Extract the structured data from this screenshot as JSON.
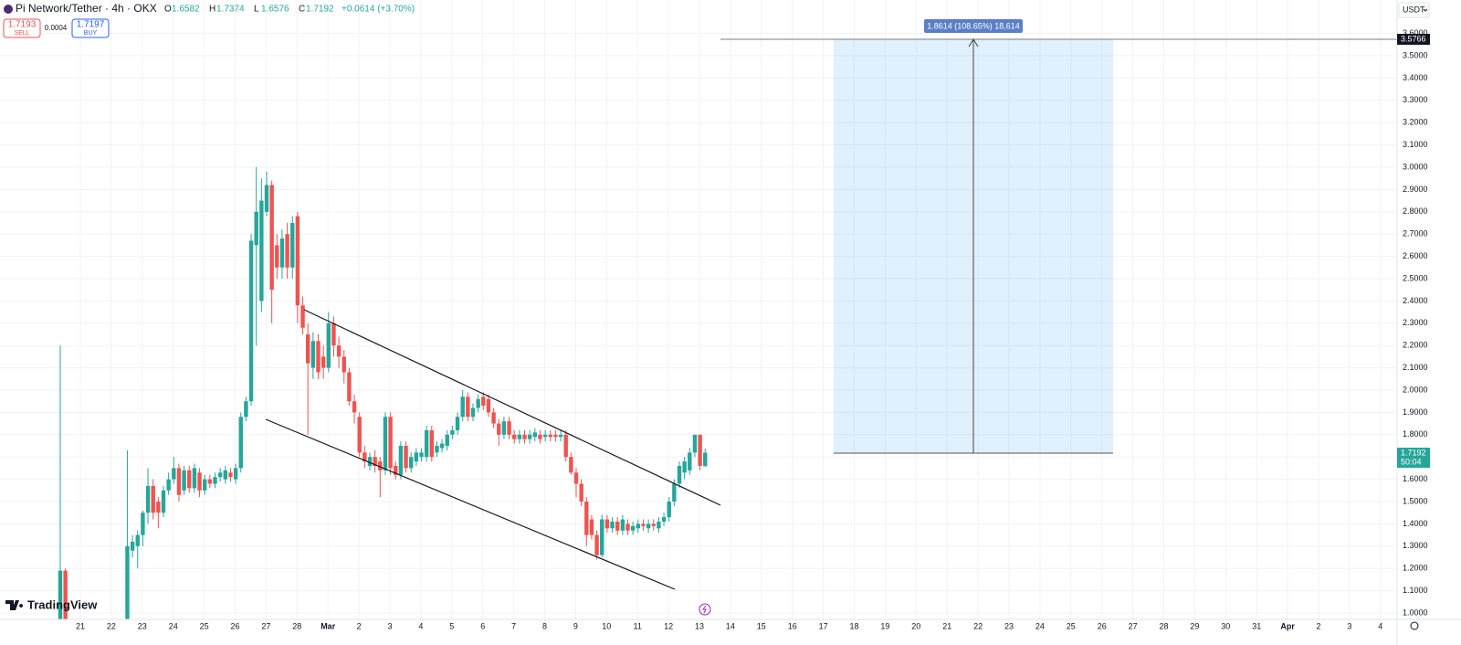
{
  "chart_data": {
    "type": "candlestick",
    "title": "Pi Network/Tether · 4h · OKX",
    "ohlc": [
      {
        "label": "O",
        "value": 1.6582
      },
      {
        "label": "H",
        "value": 1.7374
      },
      {
        "label": "L",
        "value": 1.6576
      },
      {
        "label": "C",
        "value": 1.7192
      }
    ],
    "change": "+0.0614 (+3.70%)",
    "sell": {
      "price": 1.7193,
      "label": "SELL"
    },
    "spread": 0.0004,
    "buy": {
      "price": 1.7197,
      "label": "BUY"
    },
    "currency": "USDT",
    "logo": "TradingView",
    "measure_label": "1.8614 (108.65%) 18,614",
    "target_price": 3.5766,
    "last_price": 1.7192,
    "countdown": "50:04",
    "up_color": "#26a69a",
    "down_color": "#ef5350",
    "grid": true,
    "ylim": [
      0.96,
      3.66
    ],
    "yticks": [
      {
        "value": 1.0,
        "label": "1.0000"
      },
      {
        "value": 1.1,
        "label": "1.1000"
      },
      {
        "value": 1.2,
        "label": "1.2000"
      },
      {
        "value": 1.3,
        "label": "1.3000"
      },
      {
        "value": 1.4,
        "label": "1.4000"
      },
      {
        "value": 1.5,
        "label": "1.5000"
      },
      {
        "value": 1.6,
        "label": "1.6000"
      },
      {
        "value": 1.7,
        "label": "1.7000"
      },
      {
        "value": 1.8,
        "label": "1.8000"
      },
      {
        "value": 1.9,
        "label": "1.9000"
      },
      {
        "value": 2.0,
        "label": "2.0000"
      },
      {
        "value": 2.1,
        "label": "2.1000"
      },
      {
        "value": 2.2,
        "label": "2.2000"
      },
      {
        "value": 2.3,
        "label": "2.3000"
      },
      {
        "value": 2.4,
        "label": "2.4000"
      },
      {
        "value": 2.5,
        "label": "2.5000"
      },
      {
        "value": 2.6,
        "label": "2.6000"
      },
      {
        "value": 2.7,
        "label": "2.7000"
      },
      {
        "value": 2.8,
        "label": "2.8000"
      },
      {
        "value": 2.9,
        "label": "2.9000"
      },
      {
        "value": 3.0,
        "label": "3.0000"
      },
      {
        "value": 3.1,
        "label": "3.1000"
      },
      {
        "value": 3.2,
        "label": "3.2000"
      },
      {
        "value": 3.3,
        "label": "3.3000"
      },
      {
        "value": 3.4,
        "label": "3.4000"
      },
      {
        "value": 3.5,
        "label": "3.5000"
      },
      {
        "value": 3.6,
        "label": "3.6000"
      }
    ],
    "x_labels": [
      "21",
      "22",
      "23",
      "24",
      "25",
      "26",
      "27",
      "28",
      "Mar",
      "2",
      "3",
      "4",
      "5",
      "6",
      "7",
      "8",
      "9",
      "10",
      "11",
      "12",
      "13",
      "14",
      "15",
      "16",
      "17",
      "18",
      "19",
      "20",
      "21",
      "22",
      "23",
      "24",
      "25",
      "26",
      "27",
      "28",
      "29",
      "30",
      "31",
      "Apr",
      "2",
      "3",
      "4"
    ],
    "candles": [
      [
        0.95,
        2.2,
        0.9,
        1.19
      ],
      [
        1.19,
        1.2,
        0.9,
        0.95
      ],
      null,
      null,
      null,
      null,
      null,
      null,
      null,
      null,
      null,
      null,
      null,
      [
        0.95,
        1.73,
        0.95,
        1.3
      ],
      [
        1.28,
        1.35,
        1.25,
        1.32
      ],
      [
        1.3,
        1.37,
        1.2,
        1.35
      ],
      [
        1.35,
        1.46,
        1.3,
        1.45
      ],
      [
        1.45,
        1.65,
        1.4,
        1.57
      ],
      [
        1.57,
        1.6,
        1.42,
        1.45
      ],
      [
        1.5,
        1.52,
        1.38,
        1.45
      ],
      [
        1.45,
        1.57,
        1.43,
        1.55
      ],
      [
        1.55,
        1.63,
        1.53,
        1.6
      ],
      [
        1.6,
        1.7,
        1.58,
        1.65
      ],
      [
        1.65,
        1.67,
        1.5,
        1.53
      ],
      [
        1.55,
        1.66,
        1.53,
        1.64
      ],
      [
        1.64,
        1.66,
        1.54,
        1.56
      ],
      [
        1.56,
        1.67,
        1.54,
        1.65
      ],
      [
        1.63,
        1.65,
        1.52,
        1.55
      ],
      [
        1.55,
        1.62,
        1.53,
        1.6
      ],
      [
        1.6,
        1.62,
        1.56,
        1.58
      ],
      [
        1.58,
        1.63,
        1.56,
        1.61
      ],
      [
        1.61,
        1.65,
        1.59,
        1.63
      ],
      [
        1.6,
        1.66,
        1.58,
        1.64
      ],
      [
        1.63,
        1.65,
        1.59,
        1.61
      ],
      [
        1.6,
        1.67,
        1.58,
        1.65
      ],
      [
        1.65,
        1.9,
        1.63,
        1.88
      ],
      [
        1.88,
        1.97,
        1.86,
        1.95
      ],
      [
        1.95,
        2.7,
        1.93,
        2.67
      ],
      [
        2.65,
        3.0,
        2.2,
        2.8
      ],
      [
        2.4,
        2.95,
        2.35,
        2.85
      ],
      [
        2.8,
        2.98,
        2.78,
        2.92
      ],
      [
        2.92,
        2.94,
        2.3,
        2.45
      ],
      [
        2.65,
        2.7,
        2.5,
        2.55
      ],
      [
        2.55,
        2.72,
        2.5,
        2.68
      ],
      [
        2.7,
        2.75,
        2.5,
        2.55
      ],
      [
        2.55,
        2.78,
        2.5,
        2.75
      ],
      [
        2.78,
        2.8,
        2.3,
        2.38
      ],
      [
        2.38,
        2.42,
        2.25,
        2.28
      ],
      [
        2.25,
        2.3,
        1.8,
        2.12
      ],
      [
        2.1,
        2.26,
        2.05,
        2.22
      ],
      [
        2.22,
        2.25,
        2.05,
        2.08
      ],
      [
        2.15,
        2.2,
        2.05,
        2.1
      ],
      [
        2.1,
        2.35,
        2.08,
        2.3
      ],
      [
        2.3,
        2.33,
        2.15,
        2.2
      ],
      [
        2.2,
        2.24,
        2.1,
        2.15
      ],
      [
        2.15,
        2.18,
        2.03,
        2.08
      ],
      [
        2.08,
        2.1,
        1.93,
        1.95
      ],
      [
        1.95,
        1.98,
        1.85,
        1.9
      ],
      [
        1.88,
        1.9,
        1.7,
        1.72
      ],
      [
        1.72,
        1.75,
        1.65,
        1.68
      ],
      [
        1.66,
        1.72,
        1.64,
        1.7
      ],
      [
        1.7,
        1.73,
        1.63,
        1.66
      ],
      [
        1.68,
        1.7,
        1.52,
        1.64
      ],
      [
        1.64,
        1.9,
        1.62,
        1.88
      ],
      [
        1.88,
        1.9,
        1.62,
        1.65
      ],
      [
        1.66,
        1.68,
        1.6,
        1.62
      ],
      [
        1.62,
        1.77,
        1.6,
        1.75
      ],
      [
        1.75,
        1.77,
        1.63,
        1.65
      ],
      [
        1.65,
        1.72,
        1.63,
        1.7
      ],
      [
        1.68,
        1.74,
        1.66,
        1.72
      ],
      [
        1.7,
        1.74,
        1.68,
        1.72
      ],
      [
        1.7,
        1.84,
        1.68,
        1.82
      ],
      [
        1.82,
        1.84,
        1.68,
        1.7
      ],
      [
        1.72,
        1.77,
        1.7,
        1.75
      ],
      [
        1.74,
        1.78,
        1.72,
        1.76
      ],
      [
        1.75,
        1.82,
        1.73,
        1.8
      ],
      [
        1.8,
        1.84,
        1.78,
        1.82
      ],
      [
        1.82,
        1.9,
        1.8,
        1.88
      ],
      [
        1.88,
        2.0,
        1.86,
        1.97
      ],
      [
        1.97,
        1.99,
        1.86,
        1.88
      ],
      [
        1.88,
        1.94,
        1.86,
        1.92
      ],
      [
        1.92,
        1.98,
        1.9,
        1.96
      ],
      [
        1.97,
        1.99,
        1.91,
        1.93
      ],
      [
        1.96,
        1.98,
        1.88,
        1.9
      ],
      [
        1.9,
        1.92,
        1.83,
        1.85
      ],
      [
        1.85,
        1.87,
        1.75,
        1.8
      ],
      [
        1.8,
        1.88,
        1.78,
        1.86
      ],
      [
        1.86,
        1.88,
        1.78,
        1.8
      ],
      [
        1.8,
        1.82,
        1.76,
        1.78
      ],
      [
        1.78,
        1.82,
        1.76,
        1.8
      ],
      [
        1.8,
        1.82,
        1.76,
        1.78
      ],
      [
        1.78,
        1.82,
        1.76,
        1.8
      ],
      [
        1.79,
        1.83,
        1.77,
        1.81
      ],
      [
        1.8,
        1.82,
        1.76,
        1.78
      ],
      [
        1.79,
        1.82,
        1.77,
        1.8
      ],
      [
        1.8,
        1.82,
        1.77,
        1.79
      ],
      [
        1.8,
        1.82,
        1.77,
        1.79
      ],
      [
        1.79,
        1.82,
        1.77,
        1.8
      ],
      [
        1.8,
        1.82,
        1.68,
        1.7
      ],
      [
        1.7,
        1.72,
        1.62,
        1.63
      ],
      [
        1.63,
        1.65,
        1.52,
        1.58
      ],
      [
        1.58,
        1.6,
        1.48,
        1.5
      ],
      [
        1.5,
        1.52,
        1.3,
        1.35
      ],
      [
        1.42,
        1.44,
        1.33,
        1.35
      ],
      [
        1.35,
        1.37,
        1.24,
        1.26
      ],
      [
        1.26,
        1.44,
        1.25,
        1.42
      ],
      [
        1.42,
        1.44,
        1.36,
        1.38
      ],
      [
        1.38,
        1.43,
        1.36,
        1.41
      ],
      [
        1.41,
        1.43,
        1.35,
        1.37
      ],
      [
        1.37,
        1.44,
        1.35,
        1.42
      ],
      [
        1.4,
        1.42,
        1.35,
        1.37
      ],
      [
        1.37,
        1.41,
        1.35,
        1.39
      ],
      [
        1.38,
        1.42,
        1.36,
        1.4
      ],
      [
        1.4,
        1.42,
        1.37,
        1.39
      ],
      [
        1.38,
        1.42,
        1.36,
        1.4
      ],
      [
        1.4,
        1.42,
        1.37,
        1.39
      ],
      [
        1.38,
        1.43,
        1.36,
        1.41
      ],
      [
        1.41,
        1.45,
        1.39,
        1.43
      ],
      [
        1.43,
        1.52,
        1.41,
        1.5
      ],
      [
        1.5,
        1.6,
        1.48,
        1.58
      ],
      [
        1.58,
        1.68,
        1.56,
        1.66
      ],
      [
        1.63,
        1.7,
        1.6,
        1.68
      ],
      [
        1.64,
        1.74,
        1.62,
        1.72
      ],
      [
        1.72,
        1.8,
        1.7,
        1.8
      ],
      [
        1.8,
        1.8,
        1.64,
        1.66
      ],
      [
        1.6582,
        1.7374,
        1.6576,
        1.7192
      ]
    ]
  }
}
